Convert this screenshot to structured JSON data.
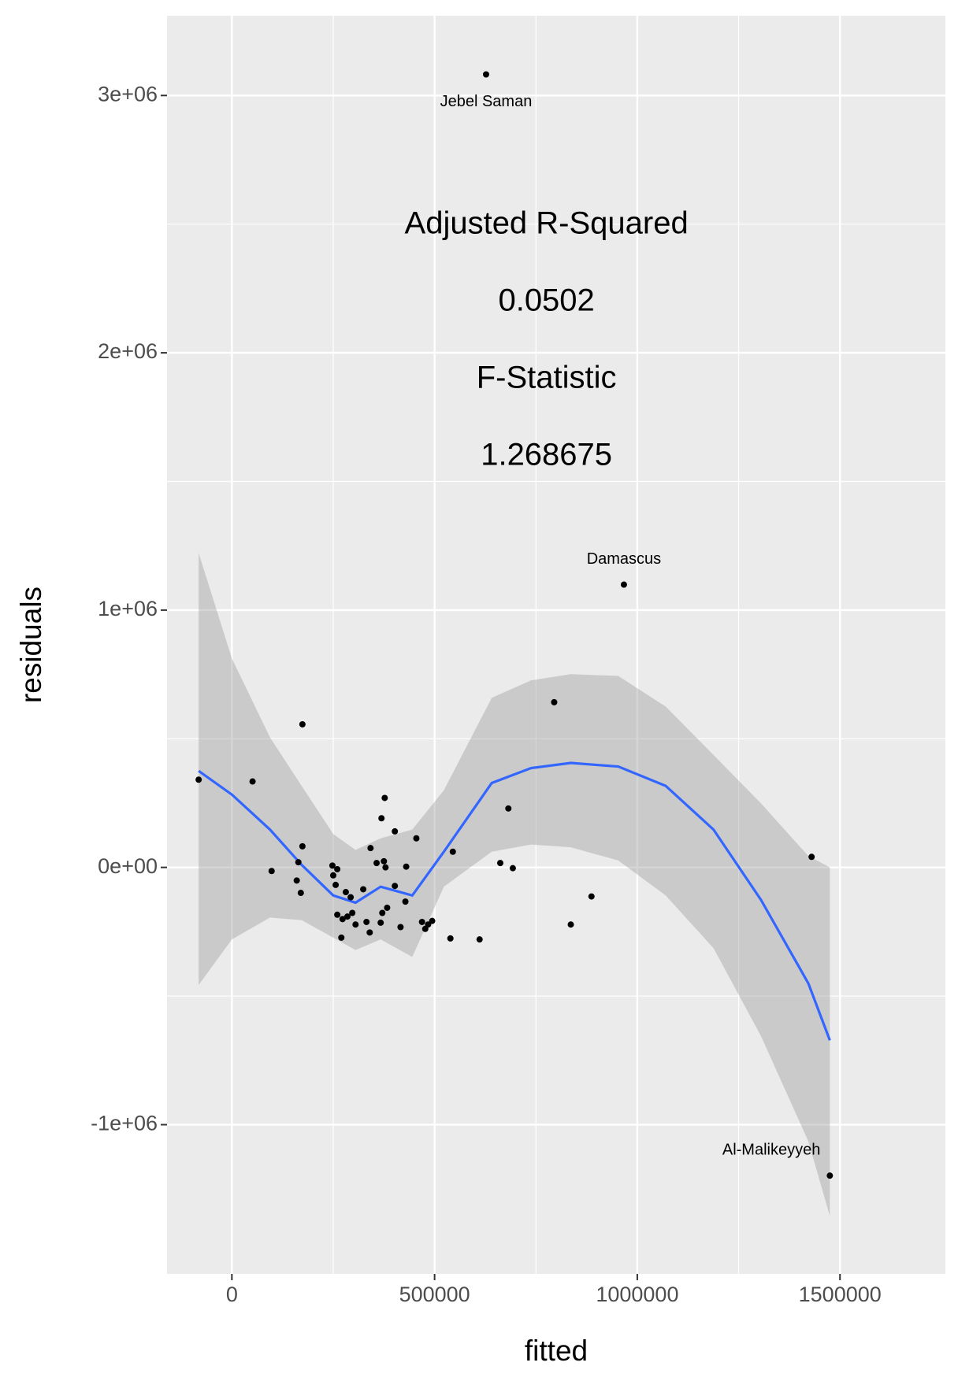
{
  "chart_data": {
    "type": "scatter",
    "x_label": "fitted",
    "y_label": "residuals",
    "annotations": [
      "Adjusted R-Squared",
      "0.0502",
      "F-Statistic",
      "1.268675"
    ],
    "xlim": [
      -160000,
      1760000
    ],
    "ylim": [
      -1580000,
      3310000
    ],
    "xticks": [
      0,
      500000,
      1000000,
      1500000
    ],
    "yticks": [
      {
        "value": -1000000,
        "label": "-1e+06"
      },
      {
        "value": 0,
        "label": "0e+00"
      },
      {
        "value": 1000000,
        "label": "1e+06"
      },
      {
        "value": 2000000,
        "label": "2e+06"
      },
      {
        "value": 3000000,
        "label": "3e+06"
      }
    ],
    "grid": true,
    "point_color": "#000000",
    "x": [
      -82000,
      51000,
      174000,
      98000,
      164000,
      160000,
      174000,
      170000,
      248000,
      260000,
      250000,
      256000,
      260000,
      270000,
      273000,
      281000,
      285000,
      293000,
      297000,
      305000,
      324000,
      332000,
      340000,
      342000,
      357000,
      369000,
      375000,
      379000,
      377000,
      367000,
      371000,
      383000,
      402000,
      402000,
      416000,
      428000,
      430000,
      455000,
      469000,
      477000,
      484000,
      494000,
      539000,
      545000,
      611000,
      662000,
      682000,
      693000,
      795000,
      836000,
      887000,
      967000,
      1430000,
      1475000,
      627000
    ],
    "y": [
      341000,
      334000,
      556000,
      -14000,
      20000,
      -51000,
      82000,
      -99000,
      7000,
      -7000,
      -31000,
      -68000,
      -184000,
      -273000,
      -201000,
      -96000,
      -191000,
      -116000,
      -177000,
      -222000,
      -85000,
      -212000,
      -253000,
      75000,
      17000,
      191000,
      24000,
      0,
      270000,
      -215000,
      -177000,
      -157000,
      140000,
      -72000,
      -232000,
      -133000,
      3000,
      113000,
      -212000,
      -239000,
      -222000,
      -208000,
      -276000,
      61000,
      -280000,
      17000,
      229000,
      -3000,
      642000,
      -222000,
      -113000,
      1099000,
      41000,
      -1198000,
      3082000
    ],
    "labels": [
      null,
      null,
      null,
      null,
      null,
      null,
      null,
      null,
      null,
      null,
      null,
      null,
      null,
      null,
      null,
      null,
      null,
      null,
      null,
      null,
      null,
      null,
      null,
      null,
      null,
      null,
      null,
      null,
      null,
      null,
      null,
      null,
      null,
      null,
      null,
      null,
      null,
      null,
      null,
      null,
      null,
      null,
      null,
      null,
      null,
      null,
      null,
      null,
      null,
      null,
      null,
      "Damascus",
      null,
      "Al-Malikeyyeh",
      "Jebel Saman"
    ],
    "smooth": {
      "color": "#3366ff",
      "band_color": "#999999",
      "x": [
        -82000,
        0,
        94000,
        172000,
        250000,
        305000,
        367000,
        445000,
        523000,
        641000,
        738000,
        836000,
        953000,
        1070000,
        1188000,
        1305000,
        1422000,
        1475000
      ],
      "y": [
        375000,
        283000,
        147000,
        10000,
        -109000,
        -137000,
        -75000,
        -109000,
        61000,
        328000,
        386000,
        406000,
        392000,
        317000,
        147000,
        -126000,
        -451000,
        -672000
      ],
      "lower": [
        -457000,
        -280000,
        -195000,
        -205000,
        -273000,
        -321000,
        -280000,
        -348000,
        -75000,
        61000,
        89000,
        78000,
        27000,
        -109000,
        -314000,
        -655000,
        -1065000,
        -1355000
      ],
      "upper": [
        1222000,
        812000,
        505000,
        317000,
        130000,
        68000,
        113000,
        147000,
        300000,
        659000,
        727000,
        751000,
        744000,
        625000,
        437000,
        249000,
        44000,
        0
      ]
    }
  }
}
